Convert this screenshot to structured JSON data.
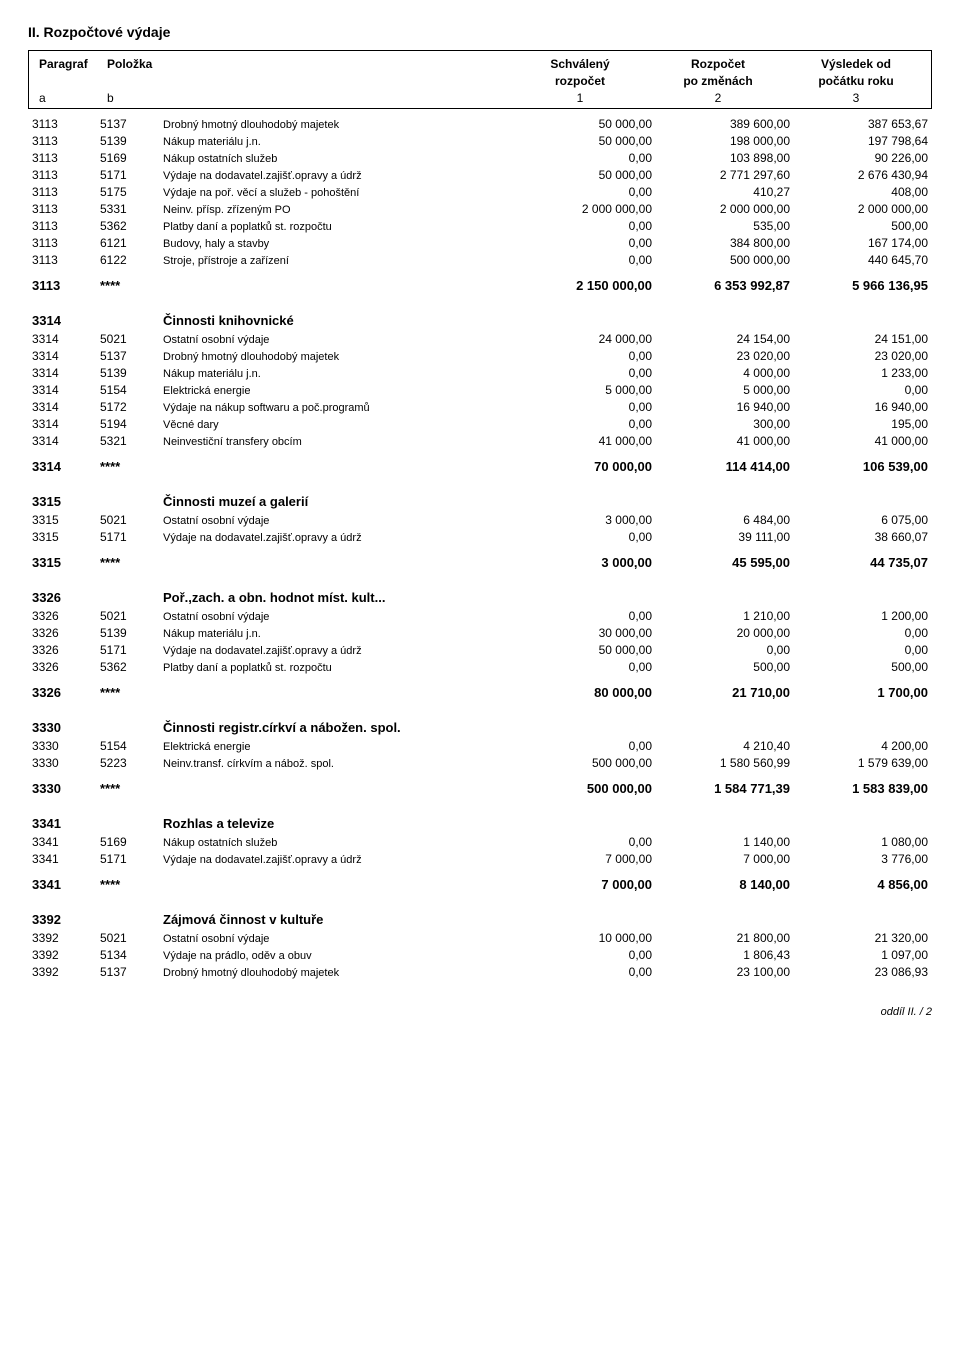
{
  "title": "II. Rozpočtové výdaje",
  "header": {
    "paragraf": "Paragraf",
    "polozka": "Položka",
    "col1_top": "Schválený",
    "col1_sub": "rozpočet",
    "col2_top": "Rozpočet",
    "col2_sub": "po změnách",
    "col3_top": "Výsledek od",
    "col3_sub": "počátku roku",
    "a": "a",
    "b": "b",
    "n1": "1",
    "n2": "2",
    "n3": "3"
  },
  "rows": [
    {
      "type": "data",
      "par": "3113",
      "pol": "5137",
      "desc": "Drobný hmotný dlouhodobý majetek",
      "v1": "50 000,00",
      "v2": "389 600,00",
      "v3": "387 653,67"
    },
    {
      "type": "data",
      "par": "3113",
      "pol": "5139",
      "desc": "Nákup materiálu j.n.",
      "v1": "50 000,00",
      "v2": "198 000,00",
      "v3": "197 798,64"
    },
    {
      "type": "data",
      "par": "3113",
      "pol": "5169",
      "desc": "Nákup ostatních služeb",
      "v1": "0,00",
      "v2": "103 898,00",
      "v3": "90 226,00"
    },
    {
      "type": "data",
      "par": "3113",
      "pol": "5171",
      "desc": "Výdaje na dodavatel.zajišť.opravy a údrž",
      "v1": "50 000,00",
      "v2": "2 771 297,60",
      "v3": "2 676 430,94"
    },
    {
      "type": "data",
      "par": "3113",
      "pol": "5175",
      "desc": "Výdaje na poř. věcí a služeb - pohoštění",
      "v1": "0,00",
      "v2": "410,27",
      "v3": "408,00"
    },
    {
      "type": "data",
      "par": "3113",
      "pol": "5331",
      "desc": "Neinv. přísp. zřízeným PO",
      "v1": "2 000 000,00",
      "v2": "2 000 000,00",
      "v3": "2 000 000,00"
    },
    {
      "type": "data",
      "par": "3113",
      "pol": "5362",
      "desc": "Platby daní a poplatků st. rozpočtu",
      "v1": "0,00",
      "v2": "535,00",
      "v3": "500,00"
    },
    {
      "type": "data",
      "par": "3113",
      "pol": "6121",
      "desc": "Budovy, haly a stavby",
      "v1": "0,00",
      "v2": "384 800,00",
      "v3": "167 174,00"
    },
    {
      "type": "data",
      "par": "3113",
      "pol": "6122",
      "desc": "Stroje, přístroje a zařízení",
      "v1": "0,00",
      "v2": "500 000,00",
      "v3": "440 645,70"
    },
    {
      "type": "total",
      "par": "3113",
      "pol": "****",
      "desc": "",
      "v1": "2 150 000,00",
      "v2": "6 353 992,87",
      "v3": "5 966 136,95"
    },
    {
      "type": "section",
      "par": "3314",
      "desc": "Činnosti knihovnické"
    },
    {
      "type": "data",
      "par": "3314",
      "pol": "5021",
      "desc": "Ostatní osobní výdaje",
      "v1": "24 000,00",
      "v2": "24 154,00",
      "v3": "24 151,00"
    },
    {
      "type": "data",
      "par": "3314",
      "pol": "5137",
      "desc": "Drobný hmotný dlouhodobý majetek",
      "v1": "0,00",
      "v2": "23 020,00",
      "v3": "23 020,00"
    },
    {
      "type": "data",
      "par": "3314",
      "pol": "5139",
      "desc": "Nákup materiálu j.n.",
      "v1": "0,00",
      "v2": "4 000,00",
      "v3": "1 233,00"
    },
    {
      "type": "data",
      "par": "3314",
      "pol": "5154",
      "desc": "Elektrická energie",
      "v1": "5 000,00",
      "v2": "5 000,00",
      "v3": "0,00"
    },
    {
      "type": "data",
      "par": "3314",
      "pol": "5172",
      "desc": "Výdaje na nákup softwaru a poč.programů",
      "v1": "0,00",
      "v2": "16 940,00",
      "v3": "16 940,00"
    },
    {
      "type": "data",
      "par": "3314",
      "pol": "5194",
      "desc": "Věcné dary",
      "v1": "0,00",
      "v2": "300,00",
      "v3": "195,00"
    },
    {
      "type": "data",
      "par": "3314",
      "pol": "5321",
      "desc": "Neinvestiční transfery obcím",
      "v1": "41 000,00",
      "v2": "41 000,00",
      "v3": "41 000,00"
    },
    {
      "type": "total",
      "par": "3314",
      "pol": "****",
      "desc": "",
      "v1": "70 000,00",
      "v2": "114 414,00",
      "v3": "106 539,00"
    },
    {
      "type": "section",
      "par": "3315",
      "desc": "Činnosti muzeí a galerií"
    },
    {
      "type": "data",
      "par": "3315",
      "pol": "5021",
      "desc": "Ostatní osobní výdaje",
      "v1": "3 000,00",
      "v2": "6 484,00",
      "v3": "6 075,00"
    },
    {
      "type": "data",
      "par": "3315",
      "pol": "5171",
      "desc": "Výdaje na dodavatel.zajišť.opravy a údrž",
      "v1": "0,00",
      "v2": "39 111,00",
      "v3": "38 660,07"
    },
    {
      "type": "total",
      "par": "3315",
      "pol": "****",
      "desc": "",
      "v1": "3 000,00",
      "v2": "45 595,00",
      "v3": "44 735,07"
    },
    {
      "type": "section",
      "par": "3326",
      "desc": "Poř.,zach. a obn. hodnot míst. kult..."
    },
    {
      "type": "data",
      "par": "3326",
      "pol": "5021",
      "desc": "Ostatní osobní výdaje",
      "v1": "0,00",
      "v2": "1 210,00",
      "v3": "1 200,00"
    },
    {
      "type": "data",
      "par": "3326",
      "pol": "5139",
      "desc": "Nákup materiálu j.n.",
      "v1": "30 000,00",
      "v2": "20 000,00",
      "v3": "0,00"
    },
    {
      "type": "data",
      "par": "3326",
      "pol": "5171",
      "desc": "Výdaje na dodavatel.zajišť.opravy a údrž",
      "v1": "50 000,00",
      "v2": "0,00",
      "v3": "0,00"
    },
    {
      "type": "data",
      "par": "3326",
      "pol": "5362",
      "desc": "Platby daní a poplatků st. rozpočtu",
      "v1": "0,00",
      "v2": "500,00",
      "v3": "500,00"
    },
    {
      "type": "total",
      "par": "3326",
      "pol": "****",
      "desc": "",
      "v1": "80 000,00",
      "v2": "21 710,00",
      "v3": "1 700,00"
    },
    {
      "type": "section",
      "par": "3330",
      "desc": "Činnosti registr.církví a nábožen. spol."
    },
    {
      "type": "data",
      "par": "3330",
      "pol": "5154",
      "desc": "Elektrická energie",
      "v1": "0,00",
      "v2": "4 210,40",
      "v3": "4 200,00"
    },
    {
      "type": "data",
      "par": "3330",
      "pol": "5223",
      "desc": "Neinv.transf. církvím a nábož. spol.",
      "v1": "500 000,00",
      "v2": "1 580 560,99",
      "v3": "1 579 639,00"
    },
    {
      "type": "total",
      "par": "3330",
      "pol": "****",
      "desc": "",
      "v1": "500 000,00",
      "v2": "1 584 771,39",
      "v3": "1 583 839,00"
    },
    {
      "type": "section",
      "par": "3341",
      "desc": "Rozhlas a televize"
    },
    {
      "type": "data",
      "par": "3341",
      "pol": "5169",
      "desc": "Nákup ostatních služeb",
      "v1": "0,00",
      "v2": "1 140,00",
      "v3": "1 080,00"
    },
    {
      "type": "data",
      "par": "3341",
      "pol": "5171",
      "desc": "Výdaje na dodavatel.zajišť.opravy a údrž",
      "v1": "7 000,00",
      "v2": "7 000,00",
      "v3": "3 776,00"
    },
    {
      "type": "total",
      "par": "3341",
      "pol": "****",
      "desc": "",
      "v1": "7 000,00",
      "v2": "8 140,00",
      "v3": "4 856,00"
    },
    {
      "type": "section",
      "par": "3392",
      "desc": "Zájmová činnost v kultuře"
    },
    {
      "type": "data",
      "par": "3392",
      "pol": "5021",
      "desc": "Ostatní osobní výdaje",
      "v1": "10 000,00",
      "v2": "21 800,00",
      "v3": "21 320,00"
    },
    {
      "type": "data",
      "par": "3392",
      "pol": "5134",
      "desc": "Výdaje na prádlo, oděv a obuv",
      "v1": "0,00",
      "v2": "1 806,43",
      "v3": "1 097,00"
    },
    {
      "type": "data",
      "par": "3392",
      "pol": "5137",
      "desc": "Drobný hmotný dlouhodobý majetek",
      "v1": "0,00",
      "v2": "23 100,00",
      "v3": "23 086,93"
    }
  ],
  "footer": "oddíl II.  /  2"
}
